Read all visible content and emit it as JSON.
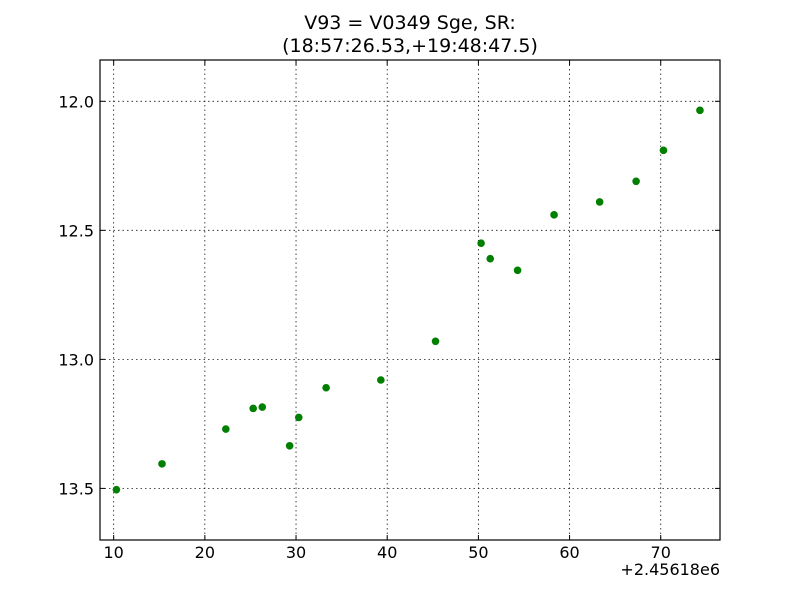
{
  "chart_data": {
    "type": "scatter",
    "title_line1": "V93 = V0349 Sge, SR:",
    "title_line2": "(18:57:26.53,+19:48:47.5)",
    "xlabel": "",
    "ylabel": "",
    "x_offset_label": "+2.45618e6",
    "xlim": [
      8.5,
      76.5
    ],
    "ylim": [
      13.7,
      11.84
    ],
    "y_inverted": true,
    "grid": true,
    "marker_color": "#007f00",
    "x_ticks": [
      10,
      20,
      30,
      40,
      50,
      60,
      70
    ],
    "x_tick_labels": [
      "10",
      "20",
      "30",
      "40",
      "50",
      "60",
      "70"
    ],
    "y_ticks": [
      12.0,
      12.5,
      13.0,
      13.5
    ],
    "y_tick_labels": [
      "12.0",
      "12.5",
      "13.0",
      "13.5"
    ],
    "points": [
      {
        "x": 10.3,
        "y": 13.505
      },
      {
        "x": 15.3,
        "y": 13.405
      },
      {
        "x": 22.3,
        "y": 13.27
      },
      {
        "x": 25.3,
        "y": 13.19
      },
      {
        "x": 26.3,
        "y": 13.185
      },
      {
        "x": 29.3,
        "y": 13.335
      },
      {
        "x": 30.3,
        "y": 13.225
      },
      {
        "x": 33.3,
        "y": 13.11
      },
      {
        "x": 39.3,
        "y": 13.08
      },
      {
        "x": 45.3,
        "y": 12.93
      },
      {
        "x": 50.3,
        "y": 12.55
      },
      {
        "x": 51.3,
        "y": 12.61
      },
      {
        "x": 54.3,
        "y": 12.655
      },
      {
        "x": 58.3,
        "y": 12.44
      },
      {
        "x": 63.3,
        "y": 12.39
      },
      {
        "x": 67.3,
        "y": 12.31
      },
      {
        "x": 70.3,
        "y": 12.19
      },
      {
        "x": 74.3,
        "y": 12.035
      }
    ]
  }
}
